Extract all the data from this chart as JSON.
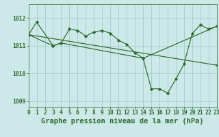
{
  "bg_color": "#cce8e8",
  "grid_color": "#aad0d0",
  "line_color": "#2d6a2d",
  "title": "Graphe pression niveau de la mer (hPa)",
  "xlim": [
    0,
    23
  ],
  "ylim": [
    1008.8,
    1012.5
  ],
  "yticks": [
    1009,
    1010,
    1011,
    1012
  ],
  "xticks": [
    0,
    1,
    2,
    3,
    4,
    5,
    6,
    7,
    8,
    9,
    10,
    11,
    12,
    13,
    14,
    15,
    16,
    17,
    18,
    19,
    20,
    21,
    22,
    23
  ],
  "series": [
    {
      "x": [
        0,
        1,
        3,
        4,
        5,
        6,
        7,
        8,
        9,
        10,
        11,
        12,
        13,
        14,
        15,
        16,
        17,
        18,
        19,
        20,
        21,
        22,
        23
      ],
      "y": [
        1011.4,
        1011.85,
        1011.0,
        1011.1,
        1011.6,
        1011.55,
        1011.35,
        1011.5,
        1011.55,
        1011.45,
        1011.2,
        1011.05,
        1010.75,
        1010.55,
        1009.45,
        1009.45,
        1009.3,
        1009.8,
        1010.35,
        1011.45,
        1011.75,
        1011.6,
        1011.7
      ]
    },
    {
      "x": [
        0,
        3,
        4,
        14,
        23
      ],
      "y": [
        1011.4,
        1011.0,
        1011.1,
        1010.55,
        1011.7
      ]
    },
    {
      "x": [
        0,
        23
      ],
      "y": [
        1011.4,
        1010.3
      ]
    }
  ],
  "title_fontsize": 7.5,
  "tick_fontsize": 5.8,
  "title_color": "#2d6a2d",
  "tick_color": "#2d6a2d",
  "axis_color": "#5a8a5a"
}
